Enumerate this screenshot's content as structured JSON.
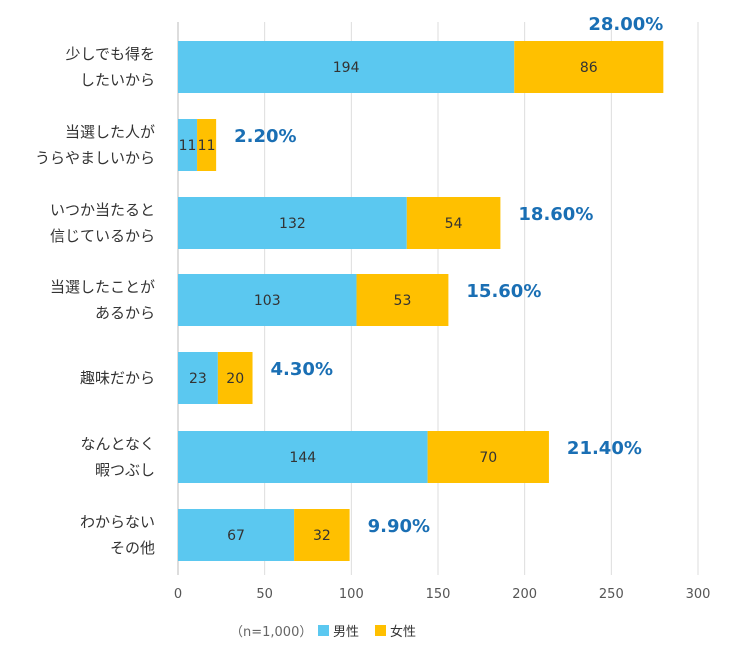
{
  "chart_data": {
    "type": "bar",
    "orientation": "horizontal",
    "stacked": true,
    "categories": [
      [
        "少しでも得を",
        "したいから"
      ],
      [
        "当選した人が",
        "うらやましいから"
      ],
      [
        "いつか当たると",
        "信じているから"
      ],
      [
        "当選したことが",
        "あるから"
      ],
      [
        "趣味だから"
      ],
      [
        "なんとなく",
        "暇つぶし"
      ],
      [
        "わからない",
        "その他"
      ]
    ],
    "series": [
      {
        "name": "男性",
        "color": "#5bc8f0",
        "values": [
          194,
          11,
          132,
          103,
          23,
          144,
          67
        ]
      },
      {
        "name": "女性",
        "color": "#ffc000",
        "values": [
          86,
          11,
          54,
          53,
          20,
          70,
          32
        ]
      }
    ],
    "percent_labels": [
      "28.00%",
      "2.20%",
      "18.60%",
      "15.60%",
      "4.30%",
      "21.40%",
      "9.90%"
    ],
    "xlim": [
      0,
      300
    ],
    "xticks": [
      0,
      50,
      100,
      150,
      200,
      250,
      300
    ],
    "grid": true,
    "legend_position": "bottom",
    "note": "（n=1,000）"
  }
}
